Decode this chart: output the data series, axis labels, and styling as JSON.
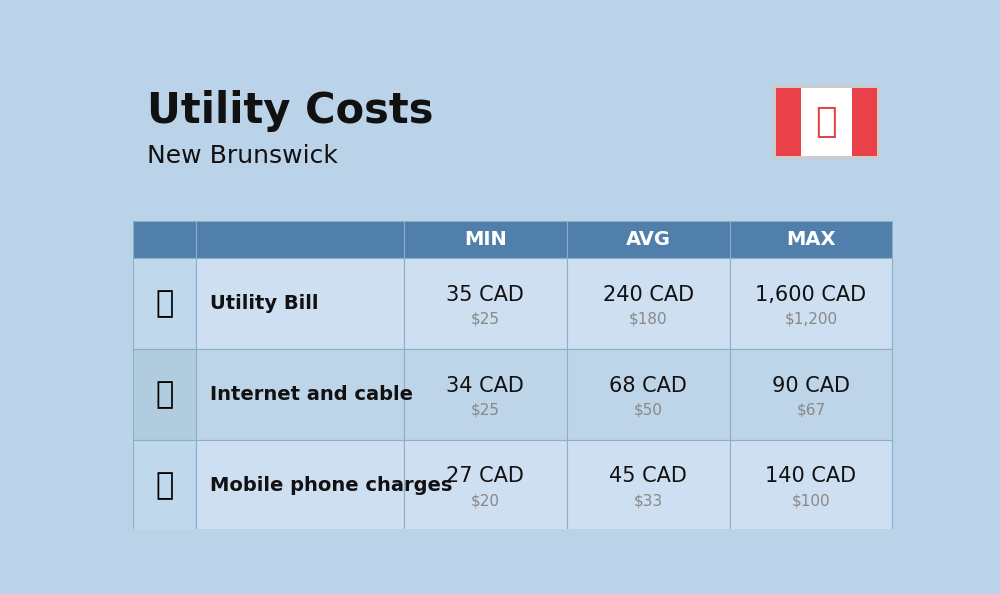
{
  "title": "Utility Costs",
  "subtitle": "New Brunswick",
  "background_color": "#bad3e8",
  "header_color": "#4f7faa",
  "header_text_color": "#ffffff",
  "row_color_light": "#cddff0",
  "row_color_dark": "#bed4e8",
  "icon_cell_color_light": "#c0d8ec",
  "icon_cell_color_dark": "#b2ccdf",
  "grid_line_color": "#9ab8d0",
  "col_headers": [
    "MIN",
    "AVG",
    "MAX"
  ],
  "rows": [
    {
      "label": "Utility Bill",
      "min_cad": "35 CAD",
      "min_usd": "$25",
      "avg_cad": "240 CAD",
      "avg_usd": "$180",
      "max_cad": "1,600 CAD",
      "max_usd": "$1,200"
    },
    {
      "label": "Internet and cable",
      "min_cad": "34 CAD",
      "min_usd": "$25",
      "avg_cad": "68 CAD",
      "avg_usd": "$50",
      "max_cad": "90 CAD",
      "max_usd": "$67"
    },
    {
      "label": "Mobile phone charges",
      "min_cad": "27 CAD",
      "min_usd": "$20",
      "avg_cad": "45 CAD",
      "avg_usd": "$33",
      "max_cad": "140 CAD",
      "max_usd": "$100"
    }
  ],
  "title_fontsize": 30,
  "subtitle_fontsize": 18,
  "header_fontsize": 14,
  "label_fontsize": 14,
  "value_fontsize": 15,
  "subvalue_fontsize": 11,
  "flag_red": "#e8414a",
  "flag_white": "#ffffff",
  "flag_maple": "#e8414a"
}
